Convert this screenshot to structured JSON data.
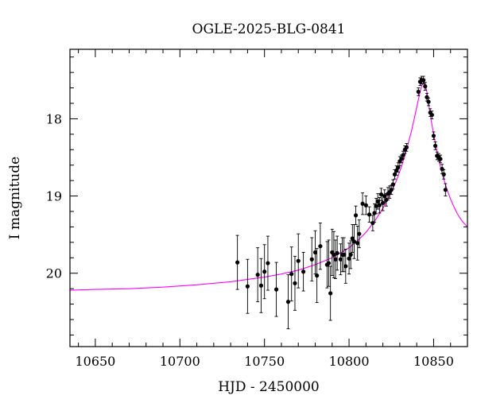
{
  "chart_data": {
    "type": "scatter",
    "title": "OGLE-2025-BLG-0841",
    "xlabel": "HJD - 2450000",
    "ylabel": "I magnitude",
    "xlim": [
      10635,
      10870
    ],
    "ylim": [
      20.95,
      17.1
    ],
    "y_inverted": true,
    "xticks": [
      10650,
      10700,
      10750,
      10800,
      10850
    ],
    "yticks": [
      18,
      19,
      20
    ],
    "grid": false,
    "legend": "none",
    "colors": {
      "data": "#000000",
      "model": "#ff00ff"
    },
    "series": [
      {
        "x": [
          10734,
          10740,
          10746,
          10748,
          10750,
          10752,
          10757,
          10764,
          10766,
          10768,
          10770,
          10773,
          10778,
          10780,
          10781,
          10783,
          10787,
          10788,
          10789,
          10790,
          10791,
          10792,
          10793,
          10795,
          10796,
          10797,
          10798,
          10800,
          10801,
          10802,
          10803,
          10804,
          10805,
          10806,
          10808,
          10810,
          10812,
          10814,
          10815,
          10816,
          10817,
          10818,
          10819,
          10820,
          10821,
          10822,
          10823,
          10824,
          10825,
          10826,
          10827,
          10828,
          10829,
          10830,
          10831,
          10832,
          10833,
          10834,
          10841,
          10842,
          10843,
          10844,
          10845,
          10846,
          10847,
          10848,
          10849,
          10850,
          10851,
          10852,
          10853,
          10854,
          10855,
          10856,
          10857
        ],
        "y": [
          19.86,
          20.17,
          20.02,
          20.16,
          19.98,
          19.87,
          20.21,
          20.37,
          20.01,
          20.13,
          19.84,
          19.98,
          19.82,
          19.73,
          20.03,
          19.65,
          19.89,
          19.87,
          20.26,
          19.73,
          19.76,
          19.82,
          19.74,
          19.82,
          19.76,
          19.76,
          19.91,
          19.81,
          19.76,
          19.55,
          19.59,
          19.25,
          19.61,
          19.49,
          19.1,
          19.12,
          19.24,
          19.35,
          19.22,
          19.13,
          19.07,
          19.12,
          18.98,
          19.09,
          19.0,
          19.05,
          18.97,
          18.95,
          18.92,
          18.85,
          18.72,
          18.67,
          18.63,
          18.55,
          18.52,
          18.47,
          18.4,
          18.37,
          17.65,
          17.52,
          17.5,
          17.5,
          17.58,
          17.72,
          17.78,
          17.92,
          17.95,
          18.22,
          18.35,
          18.48,
          18.5,
          18.52,
          18.65,
          18.72,
          18.92
        ],
        "yerr": [
          0.35,
          0.35,
          0.35,
          0.35,
          0.35,
          0.35,
          0.35,
          0.35,
          0.35,
          0.35,
          0.35,
          0.25,
          0.28,
          0.28,
          0.35,
          0.3,
          0.3,
          0.3,
          0.35,
          0.3,
          0.3,
          0.25,
          0.22,
          0.2,
          0.22,
          0.22,
          0.22,
          0.2,
          0.18,
          0.18,
          0.22,
          0.12,
          0.22,
          0.18,
          0.14,
          0.12,
          0.1,
          0.1,
          0.12,
          0.1,
          0.1,
          0.1,
          0.08,
          0.1,
          0.08,
          0.08,
          0.08,
          0.08,
          0.06,
          0.06,
          0.06,
          0.06,
          0.06,
          0.06,
          0.05,
          0.05,
          0.05,
          0.05,
          0.05,
          0.05,
          0.05,
          0.05,
          0.05,
          0.05,
          0.05,
          0.05,
          0.05,
          0.05,
          0.05,
          0.05,
          0.05,
          0.05,
          0.06,
          0.06,
          0.08
        ]
      },
      {
        "type": "line",
        "x": [
          10635,
          10650,
          10670,
          10690,
          10710,
          10730,
          10750,
          10760,
          10770,
          10780,
          10790,
          10800,
          10805,
          10810,
          10815,
          10820,
          10825,
          10828,
          10831,
          10834,
          10837,
          10840,
          10842,
          10843,
          10844,
          10845,
          10846,
          10847,
          10848,
          10850,
          10852,
          10854,
          10856,
          10858,
          10860,
          10862,
          10864,
          10867,
          10870
        ],
        "y": [
          20.22,
          20.21,
          20.2,
          20.18,
          20.15,
          20.11,
          20.05,
          20.01,
          19.96,
          19.89,
          19.8,
          19.67,
          19.58,
          19.47,
          19.33,
          19.16,
          18.95,
          18.8,
          18.62,
          18.4,
          18.15,
          17.85,
          17.65,
          17.57,
          17.52,
          17.55,
          17.65,
          17.8,
          17.95,
          18.2,
          18.42,
          18.62,
          18.78,
          18.92,
          19.04,
          19.14,
          19.23,
          19.33,
          19.4
        ]
      }
    ]
  }
}
